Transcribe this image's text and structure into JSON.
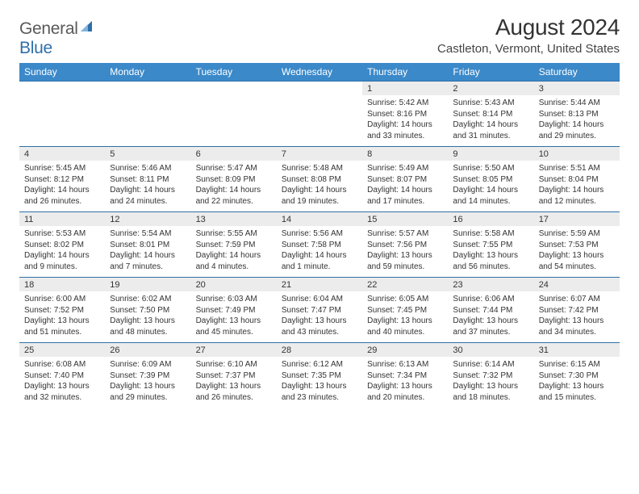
{
  "logo": {
    "brand_general": "General",
    "brand_blue": "Blue"
  },
  "title": "August 2024",
  "location": "Castleton, Vermont, United States",
  "columns": [
    "Sunday",
    "Monday",
    "Tuesday",
    "Wednesday",
    "Thursday",
    "Friday",
    "Saturday"
  ],
  "colors": {
    "header_bg": "#3b89c9",
    "header_text": "#ffffff",
    "daynum_bg": "#ececec",
    "row_border": "#2f6fa8",
    "brand_blue": "#2f6fa8",
    "brand_gray": "#5a5a5a"
  },
  "weeks": [
    {
      "nums": [
        "",
        "",
        "",
        "",
        "1",
        "2",
        "3"
      ],
      "cells": [
        "",
        "",
        "",
        "",
        "Sunrise: 5:42 AM\nSunset: 8:16 PM\nDaylight: 14 hours and 33 minutes.",
        "Sunrise: 5:43 AM\nSunset: 8:14 PM\nDaylight: 14 hours and 31 minutes.",
        "Sunrise: 5:44 AM\nSunset: 8:13 PM\nDaylight: 14 hours and 29 minutes."
      ]
    },
    {
      "nums": [
        "4",
        "5",
        "6",
        "7",
        "8",
        "9",
        "10"
      ],
      "cells": [
        "Sunrise: 5:45 AM\nSunset: 8:12 PM\nDaylight: 14 hours and 26 minutes.",
        "Sunrise: 5:46 AM\nSunset: 8:11 PM\nDaylight: 14 hours and 24 minutes.",
        "Sunrise: 5:47 AM\nSunset: 8:09 PM\nDaylight: 14 hours and 22 minutes.",
        "Sunrise: 5:48 AM\nSunset: 8:08 PM\nDaylight: 14 hours and 19 minutes.",
        "Sunrise: 5:49 AM\nSunset: 8:07 PM\nDaylight: 14 hours and 17 minutes.",
        "Sunrise: 5:50 AM\nSunset: 8:05 PM\nDaylight: 14 hours and 14 minutes.",
        "Sunrise: 5:51 AM\nSunset: 8:04 PM\nDaylight: 14 hours and 12 minutes."
      ]
    },
    {
      "nums": [
        "11",
        "12",
        "13",
        "14",
        "15",
        "16",
        "17"
      ],
      "cells": [
        "Sunrise: 5:53 AM\nSunset: 8:02 PM\nDaylight: 14 hours and 9 minutes.",
        "Sunrise: 5:54 AM\nSunset: 8:01 PM\nDaylight: 14 hours and 7 minutes.",
        "Sunrise: 5:55 AM\nSunset: 7:59 PM\nDaylight: 14 hours and 4 minutes.",
        "Sunrise: 5:56 AM\nSunset: 7:58 PM\nDaylight: 14 hours and 1 minute.",
        "Sunrise: 5:57 AM\nSunset: 7:56 PM\nDaylight: 13 hours and 59 minutes.",
        "Sunrise: 5:58 AM\nSunset: 7:55 PM\nDaylight: 13 hours and 56 minutes.",
        "Sunrise: 5:59 AM\nSunset: 7:53 PM\nDaylight: 13 hours and 54 minutes."
      ]
    },
    {
      "nums": [
        "18",
        "19",
        "20",
        "21",
        "22",
        "23",
        "24"
      ],
      "cells": [
        "Sunrise: 6:00 AM\nSunset: 7:52 PM\nDaylight: 13 hours and 51 minutes.",
        "Sunrise: 6:02 AM\nSunset: 7:50 PM\nDaylight: 13 hours and 48 minutes.",
        "Sunrise: 6:03 AM\nSunset: 7:49 PM\nDaylight: 13 hours and 45 minutes.",
        "Sunrise: 6:04 AM\nSunset: 7:47 PM\nDaylight: 13 hours and 43 minutes.",
        "Sunrise: 6:05 AM\nSunset: 7:45 PM\nDaylight: 13 hours and 40 minutes.",
        "Sunrise: 6:06 AM\nSunset: 7:44 PM\nDaylight: 13 hours and 37 minutes.",
        "Sunrise: 6:07 AM\nSunset: 7:42 PM\nDaylight: 13 hours and 34 minutes."
      ]
    },
    {
      "nums": [
        "25",
        "26",
        "27",
        "28",
        "29",
        "30",
        "31"
      ],
      "cells": [
        "Sunrise: 6:08 AM\nSunset: 7:40 PM\nDaylight: 13 hours and 32 minutes.",
        "Sunrise: 6:09 AM\nSunset: 7:39 PM\nDaylight: 13 hours and 29 minutes.",
        "Sunrise: 6:10 AM\nSunset: 7:37 PM\nDaylight: 13 hours and 26 minutes.",
        "Sunrise: 6:12 AM\nSunset: 7:35 PM\nDaylight: 13 hours and 23 minutes.",
        "Sunrise: 6:13 AM\nSunset: 7:34 PM\nDaylight: 13 hours and 20 minutes.",
        "Sunrise: 6:14 AM\nSunset: 7:32 PM\nDaylight: 13 hours and 18 minutes.",
        "Sunrise: 6:15 AM\nSunset: 7:30 PM\nDaylight: 13 hours and 15 minutes."
      ]
    }
  ]
}
